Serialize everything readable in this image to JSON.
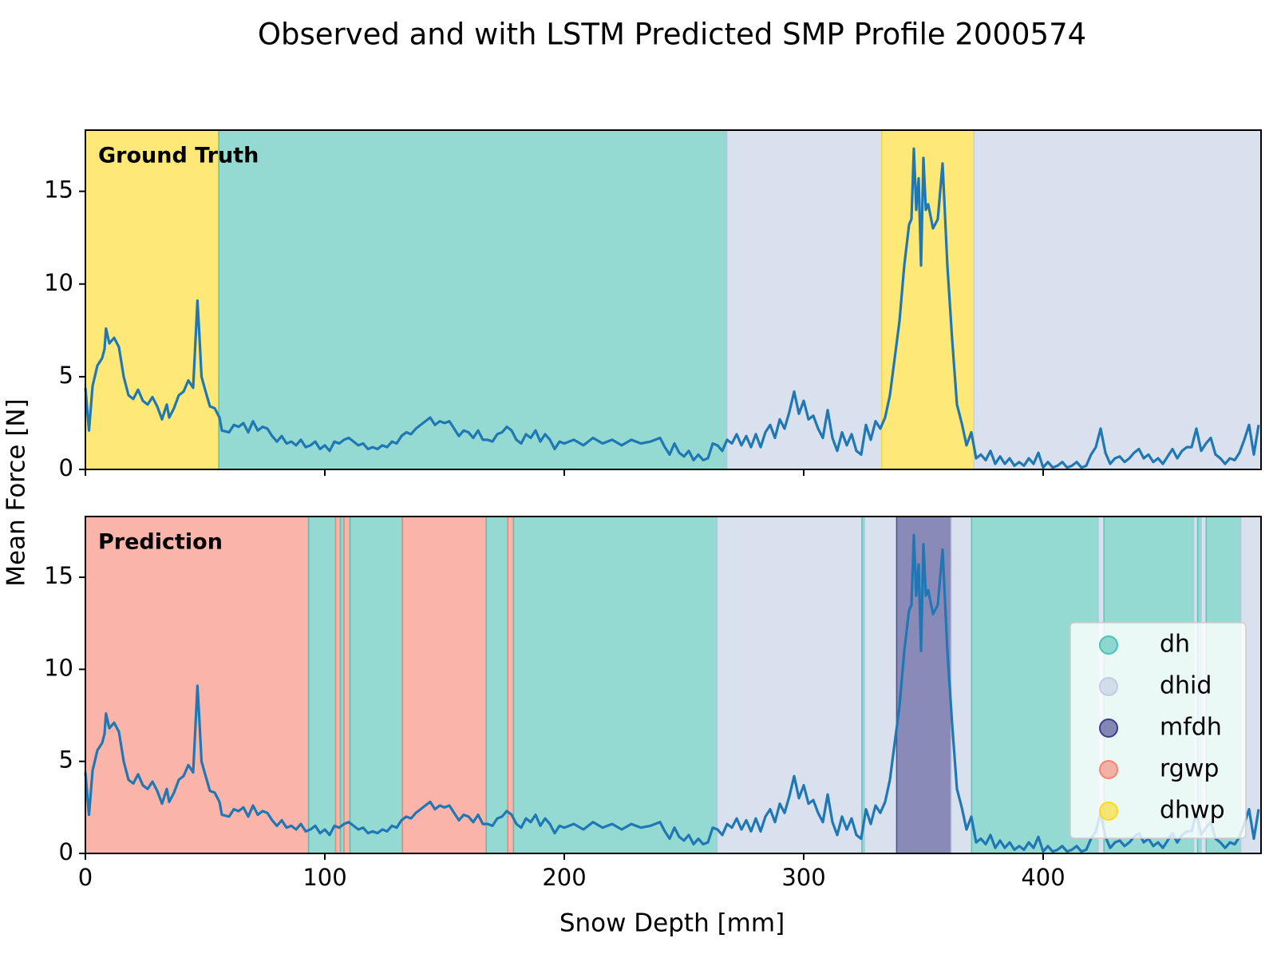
{
  "chart_data": {
    "type": "line",
    "title": "Observed and with LSTM Predicted SMP Profile 2000574",
    "xlabel": "Snow Depth [mm]",
    "ylabel": "Mean Force [N]",
    "xlim": [
      0,
      491
    ],
    "ylim": [
      0,
      18.3
    ],
    "xticks": [
      0,
      100,
      200,
      300,
      400
    ],
    "yticks": [
      0,
      5,
      10,
      15
    ],
    "line_color": "#1f77b4",
    "classes": [
      {
        "name": "dh",
        "color": "#4cc2b5"
      },
      {
        "name": "dhid",
        "color": "#bfcde3"
      },
      {
        "name": "mfdh",
        "color": "#3c3c8a"
      },
      {
        "name": "rgwp",
        "color": "#f8826f"
      },
      {
        "name": "dhwp",
        "color": "#fcd91e"
      }
    ],
    "panels": [
      {
        "label": "Ground Truth",
        "spans": [
          {
            "start": 0,
            "end": 55.7,
            "class": "dhwp"
          },
          {
            "start": 55.7,
            "end": 267.9,
            "class": "dh"
          },
          {
            "start": 267.9,
            "end": 332.6,
            "class": "dhid"
          },
          {
            "start": 332.6,
            "end": 371.1,
            "class": "dhwp"
          },
          {
            "start": 371.1,
            "end": 491,
            "class": "dhid"
          }
        ]
      },
      {
        "label": "Prediction",
        "legend": "lower right",
        "spans": [
          {
            "start": 0,
            "end": 93.2,
            "class": "rgwp"
          },
          {
            "start": 93.2,
            "end": 104.5,
            "class": "dh"
          },
          {
            "start": 104.5,
            "end": 106.5,
            "class": "rgwp"
          },
          {
            "start": 106.5,
            "end": 108,
            "class": "dh"
          },
          {
            "start": 108,
            "end": 110.5,
            "class": "rgwp"
          },
          {
            "start": 110.5,
            "end": 132.4,
            "class": "dh"
          },
          {
            "start": 132.4,
            "end": 167.4,
            "class": "rgwp"
          },
          {
            "start": 167.4,
            "end": 176.4,
            "class": "dh"
          },
          {
            "start": 176.4,
            "end": 178.8,
            "class": "rgwp"
          },
          {
            "start": 178.8,
            "end": 263.8,
            "class": "dh"
          },
          {
            "start": 263.8,
            "end": 324.3,
            "class": "dhid"
          },
          {
            "start": 324.3,
            "end": 325.4,
            "class": "dh"
          },
          {
            "start": 325.4,
            "end": 338.8,
            "class": "dhid"
          },
          {
            "start": 338.8,
            "end": 361.5,
            "class": "mfdh"
          },
          {
            "start": 361.5,
            "end": 370.1,
            "class": "dhid"
          },
          {
            "start": 370.1,
            "end": 423,
            "class": "dh"
          },
          {
            "start": 423,
            "end": 425.4,
            "class": "dhid"
          },
          {
            "start": 425.4,
            "end": 462.9,
            "class": "dh"
          },
          {
            "start": 462.9,
            "end": 464.5,
            "class": "dhid"
          },
          {
            "start": 464.5,
            "end": 466,
            "class": "dh"
          },
          {
            "start": 466,
            "end": 468.1,
            "class": "dhid"
          },
          {
            "start": 468.1,
            "end": 482.5,
            "class": "dh"
          },
          {
            "start": 482.5,
            "end": 491,
            "class": "dhid"
          }
        ]
      }
    ],
    "x": [
      0,
      1.5,
      3,
      5,
      7,
      8,
      8.6,
      10,
      12,
      14,
      16,
      18,
      20,
      22,
      24,
      26,
      28,
      30,
      32,
      34,
      35,
      37,
      39,
      41,
      43,
      45,
      46,
      46.8,
      47.5,
      48.5,
      50,
      52,
      54,
      56,
      57,
      60,
      62,
      64,
      66,
      68,
      70,
      72,
      74,
      76,
      78,
      80,
      82,
      84,
      86,
      88,
      90,
      92,
      94,
      96,
      98,
      100,
      102,
      104,
      106,
      108,
      110,
      112,
      114,
      116,
      118,
      120,
      122,
      124,
      126,
      128,
      130,
      132,
      134,
      136,
      138,
      140,
      142,
      144,
      146,
      148,
      150,
      152,
      154,
      156,
      158,
      160,
      162,
      164,
      166,
      168,
      170,
      172,
      174,
      176,
      178,
      180,
      182,
      184,
      186,
      188,
      190,
      192,
      194,
      196,
      198,
      200,
      204,
      208,
      212,
      216,
      220,
      224,
      228,
      232,
      236,
      240,
      242,
      244,
      246,
      248,
      250,
      252,
      254,
      256,
      258,
      260,
      262,
      264,
      266,
      268,
      270,
      272,
      274,
      276,
      278,
      280,
      282,
      284,
      286,
      288,
      290,
      292,
      294,
      296,
      298,
      300,
      302,
      304,
      306,
      308,
      310,
      312,
      314,
      316,
      318,
      320,
      322,
      324,
      326,
      328,
      330,
      332,
      334,
      336,
      338,
      340,
      342,
      344,
      345,
      346,
      347,
      348,
      349,
      350,
      351,
      352,
      354,
      356,
      358,
      360,
      362,
      364,
      366,
      368,
      370,
      372,
      374,
      376,
      378,
      380,
      382,
      384,
      386,
      388,
      390,
      392,
      394,
      396,
      398,
      400,
      402,
      404,
      406,
      408,
      410,
      412,
      414,
      416,
      418,
      420,
      422,
      424,
      426,
      428,
      430,
      432,
      434,
      436,
      438,
      440,
      442,
      444,
      446,
      448,
      450,
      452,
      454,
      456,
      458,
      460,
      462,
      464,
      466,
      468,
      470,
      472,
      474,
      476,
      478,
      480,
      482,
      484,
      486,
      488,
      490
    ],
    "values": [
      4.4,
      2.1,
      4.5,
      5.6,
      6.0,
      6.5,
      7.6,
      6.8,
      7.1,
      6.6,
      5.0,
      4.0,
      3.8,
      4.3,
      3.7,
      3.5,
      3.9,
      3.4,
      2.7,
      3.5,
      2.8,
      3.3,
      4.0,
      4.2,
      4.8,
      4.4,
      7.0,
      9.1,
      7.5,
      5.0,
      4.3,
      3.4,
      3.3,
      2.8,
      2.1,
      2.0,
      2.4,
      2.3,
      2.5,
      2.0,
      2.6,
      2.1,
      2.3,
      2.2,
      1.8,
      1.5,
      1.8,
      1.4,
      1.5,
      1.3,
      1.6,
      1.2,
      1.3,
      1.5,
      1.1,
      1.3,
      1.0,
      1.5,
      1.4,
      1.6,
      1.7,
      1.5,
      1.3,
      1.4,
      1.1,
      1.2,
      1.1,
      1.3,
      1.2,
      1.5,
      1.4,
      1.8,
      2.0,
      1.9,
      2.2,
      2.4,
      2.6,
      2.8,
      2.4,
      2.6,
      2.5,
      2.6,
      2.2,
      1.8,
      2.1,
      2.0,
      1.7,
      2.1,
      1.6,
      1.6,
      1.5,
      1.9,
      2.0,
      2.3,
      2.1,
      1.6,
      1.4,
      1.9,
      1.7,
      2.1,
      1.5,
      1.9,
      1.6,
      1.1,
      1.5,
      1.4,
      1.6,
      1.3,
      1.7,
      1.4,
      1.6,
      1.3,
      1.6,
      1.4,
      1.5,
      1.7,
      1.2,
      0.8,
      1.4,
      0.9,
      0.7,
      1.0,
      0.5,
      0.8,
      0.5,
      0.6,
      1.4,
      1.3,
      1.0,
      1.6,
      1.4,
      1.9,
      1.3,
      1.8,
      1.2,
      1.9,
      1.2,
      2.0,
      2.4,
      1.7,
      2.7,
      2.2,
      3.1,
      4.2,
      3.0,
      3.7,
      2.7,
      2.9,
      2.2,
      1.7,
      3.2,
      1.7,
      1.0,
      2.0,
      1.3,
      1.9,
      1.0,
      0.8,
      2.4,
      1.6,
      2.6,
      2.2,
      2.8,
      4.0,
      6.0,
      8.0,
      11.0,
      13.2,
      13.5,
      17.3,
      14.0,
      15.7,
      11.0,
      16.8,
      14.0,
      14.3,
      13.0,
      13.5,
      16.5,
      11.0,
      7.0,
      3.5,
      2.5,
      1.3,
      2.0,
      0.6,
      0.8,
      0.5,
      1.0,
      0.3,
      0.7,
      0.3,
      0.6,
      0.2,
      0.4,
      0.2,
      0.6,
      0.3,
      0.9,
      0.1,
      0.4,
      0.1,
      0.2,
      0.4,
      0.1,
      0.2,
      0.4,
      0.1,
      0.2,
      0.8,
      1.2,
      2.2,
      0.9,
      0.3,
      0.6,
      0.7,
      0.4,
      0.6,
      0.9,
      1.1,
      0.6,
      0.8,
      0.4,
      0.6,
      0.3,
      0.7,
      1.1,
      0.6,
      1.0,
      1.2,
      1.2,
      2.2,
      1.0,
      1.4,
      1.7,
      0.8,
      0.6,
      0.3,
      0.6,
      0.5,
      0.9,
      1.6,
      2.4,
      0.8,
      2.4
    ]
  }
}
